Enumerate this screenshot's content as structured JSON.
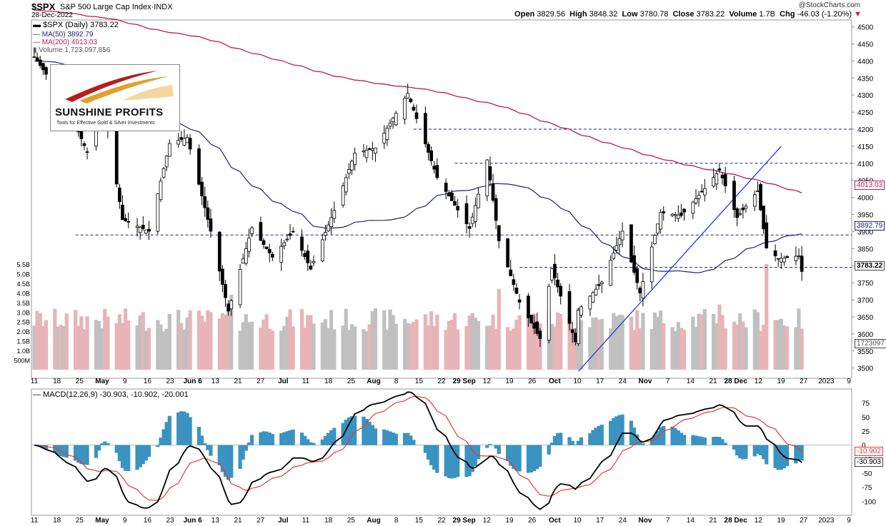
{
  "header": {
    "symbol": "$SPX",
    "name": "S&P 500 Large Cap Index",
    "exchange": "INDX",
    "date": "28-Dec-2022",
    "copyright": "@StockCharts.com",
    "open_label": "Open",
    "open": "3829.56",
    "high_label": "High",
    "high": "3848.32",
    "low_label": "Low",
    "low": "3780.78",
    "close_label": "Close",
    "close": "3783.22",
    "volume_label": "Volume",
    "volume": "1.7B",
    "chg_label": "Chg",
    "chg": "-46.03 (-1.20%)"
  },
  "legend": {
    "price": "$SPX (Daily) 3783.22",
    "ma50": "MA(50) 3892.79",
    "ma200": "MA(200) 4013.03",
    "volume": "Volume 1,723,097,856",
    "macd": "MACD(12,26,9) -30.903, -10.902, -20.001"
  },
  "logo": {
    "title": "SUNSHINE PROFITS",
    "tagline": "Tools for Effective Gold & Silver Investments"
  },
  "colors": {
    "up_candle": "#ffffff",
    "down_candle": "#000000",
    "ma50": "#1a237e",
    "ma200": "#c2185b",
    "macd_line": "#000000",
    "signal_line": "#e53935",
    "histogram": "#3a93c0",
    "volume_up": "#c0c0c0",
    "volume_down": "#e8b4b8",
    "trendline": "#1f3fd8",
    "support_line": "#1a237e"
  },
  "price_tags": {
    "ma200": "4013.03",
    "ma50": "3892.79",
    "close": "3783.22",
    "volume": "1723097",
    "macd": "-30.903",
    "signal": "-10.902"
  },
  "chart_data": [
    {
      "type": "candlestick",
      "title": "$SPX (Daily)",
      "ylim": [
        3470,
        4520
      ],
      "y_ticks": [
        3500,
        3550,
        3600,
        3650,
        3700,
        3750,
        3800,
        3850,
        3900,
        3950,
        4000,
        4050,
        4100,
        4150,
        4200,
        4250,
        4300,
        4350,
        4400,
        4450,
        4500
      ],
      "x_tick_labels": [
        "11",
        "18",
        "25",
        "May",
        "9",
        "16",
        "23",
        "Jun 6",
        "13",
        "21",
        "27",
        "Jul",
        "11",
        "18",
        "25",
        "Aug",
        "8",
        "15",
        "22",
        "29 Sep",
        "12",
        "19",
        "26",
        "Oct",
        "10",
        "17",
        "24",
        "Nov",
        "7",
        "14",
        "21",
        "28 Dec",
        "12",
        "19",
        "27",
        "2023",
        "9"
      ],
      "horizontal_levels": [
        4200,
        4100,
        3890,
        3795
      ],
      "trendline": {
        "from": [
          "2022-10-13",
          3490
        ],
        "to": [
          "2022-12-21",
          4150
        ]
      },
      "ma50_label": "MA(50)",
      "ma200_label": "MA(200)",
      "close_last": 3783.22,
      "ma50_last": 3892.79,
      "ma200_last": 4013.03,
      "key_points": [
        {
          "date": "2022-04-11",
          "close": 4413
        },
        {
          "date": "2022-05-20",
          "close": 3901
        },
        {
          "date": "2022-06-16",
          "close": 3667
        },
        {
          "date": "2022-08-16",
          "close": 4305
        },
        {
          "date": "2022-09-30",
          "close": 3586
        },
        {
          "date": "2022-10-12",
          "close": 3577
        },
        {
          "date": "2022-11-30",
          "close": 4080
        },
        {
          "date": "2022-12-13",
          "close": 4019
        },
        {
          "date": "2022-12-28",
          "close": 3783
        }
      ]
    },
    {
      "type": "bar",
      "title": "Volume",
      "y_ticks": [
        "500M",
        "1.0B",
        "1.5B",
        "2.0B",
        "2.5B",
        "3.0B",
        "3.5B",
        "4.0B",
        "4.5B",
        "5.0B",
        "5.5B"
      ],
      "last_value": 1723097856
    },
    {
      "type": "line",
      "title": "MACD(12,26,9)",
      "ylim": [
        -125,
        100
      ],
      "y_ticks": [
        75,
        50,
        25,
        0,
        -25,
        -50,
        -75,
        -100
      ],
      "macd_last": -30.903,
      "signal_last": -10.902,
      "hist_last": -20.001
    }
  ]
}
